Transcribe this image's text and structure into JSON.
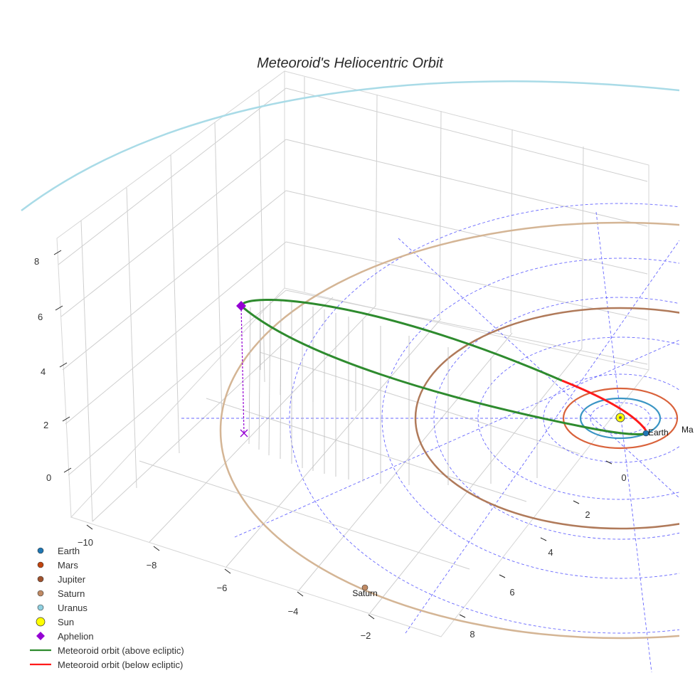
{
  "chart_data": {
    "type": "3d-orbit",
    "title": "Meteoroid's Heliocentric Orbit",
    "axes": {
      "x_ticks": [
        "−10",
        "−8",
        "−6",
        "−4",
        "−2"
      ],
      "y_ticks": [
        "0",
        "2",
        "4",
        "6",
        "8"
      ],
      "z_ticks": [
        "8",
        "6",
        "4",
        "2",
        "0"
      ]
    },
    "bodies": [
      {
        "name": "Earth",
        "label": "Earth",
        "color": "#1f77b4",
        "orbit_color": "#3a95c4"
      },
      {
        "name": "Mars",
        "label": "Ma",
        "color": "#c1440e",
        "orbit_color": "#d9623b"
      },
      {
        "name": "Jupiter",
        "label": "",
        "color": "#a0522d",
        "orbit_color": "#b07a5a"
      },
      {
        "name": "Saturn",
        "label": "Saturn",
        "color": "#c08a64",
        "orbit_color": "#d4b595"
      },
      {
        "name": "Uranus",
        "label": "",
        "color": "#8fd0e0",
        "orbit_color": "#a9dbe7"
      }
    ],
    "sun": {
      "name": "Sun",
      "color": "#ffff00"
    },
    "aphelion": {
      "name": "Aphelion",
      "color": "#9400d3",
      "z": 6.2
    },
    "series": [
      {
        "name": "Meteoroid orbit (above ecliptic)",
        "color": "#2e8b2e"
      },
      {
        "name": "Meteoroid orbit (below ecliptic)",
        "color": "#ff1a1a"
      }
    ],
    "legend": [
      {
        "label": "Earth",
        "marker": "circle",
        "color": "#1f77b4"
      },
      {
        "label": "Mars",
        "marker": "circle",
        "color": "#c1440e"
      },
      {
        "label": "Jupiter",
        "marker": "circle",
        "color": "#a0522d"
      },
      {
        "label": "Saturn",
        "marker": "circle",
        "color": "#c08a64"
      },
      {
        "label": "Uranus",
        "marker": "circle",
        "color": "#8fd0e0"
      },
      {
        "label": "Sun",
        "marker": "bigcircle",
        "color": "#ffff00"
      },
      {
        "label": "Aphelion",
        "marker": "diamond",
        "color": "#9400d3"
      },
      {
        "label": "Meteoroid orbit (above ecliptic)",
        "marker": "line",
        "color": "#2e8b2e"
      },
      {
        "label": "Meteoroid orbit (below ecliptic)",
        "marker": "line",
        "color": "#ff1a1a"
      }
    ],
    "legend_position": "bottom-left",
    "grid": true,
    "ecliptic_grid_color": "#4d4dff"
  }
}
